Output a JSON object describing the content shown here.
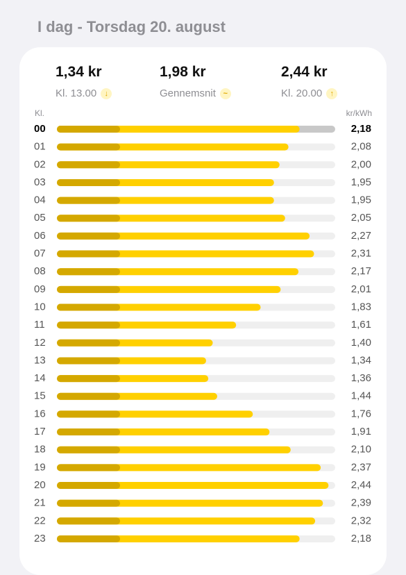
{
  "header": {
    "title": "I dag - Torsdag 20. august"
  },
  "summary": [
    {
      "value": "1,34 kr",
      "label": "Kl. 13.00"
    },
    {
      "value": "1,98 kr",
      "label": "Gennemsnit"
    },
    {
      "value": "2,44 kr",
      "label": "Kl. 20.00"
    }
  ],
  "chart_data": {
    "type": "bar",
    "orientation": "horizontal",
    "category_label": "Kl.",
    "x_label": "kr/kWh",
    "categories": [
      "00",
      "01",
      "02",
      "03",
      "04",
      "05",
      "06",
      "07",
      "08",
      "09",
      "10",
      "11",
      "12",
      "13",
      "14",
      "15",
      "16",
      "17",
      "18",
      "19",
      "20",
      "21",
      "22",
      "23"
    ],
    "values": [
      2.18,
      2.08,
      2.0,
      1.95,
      1.95,
      2.05,
      2.27,
      2.31,
      2.17,
      2.01,
      1.83,
      1.61,
      1.4,
      1.34,
      1.36,
      1.44,
      1.76,
      1.91,
      2.1,
      2.37,
      2.44,
      2.39,
      2.32,
      2.18
    ],
    "value_labels": [
      "2,18",
      "2,08",
      "2,00",
      "1,95",
      "1,95",
      "2,05",
      "2,27",
      "2,31",
      "2,17",
      "2,01",
      "1,83",
      "1,61",
      "1,40",
      "1,34",
      "1,36",
      "1,44",
      "1,76",
      "1,91",
      "2,10",
      "2,37",
      "2,44",
      "2,39",
      "2,32",
      "2,18"
    ],
    "color": "#ffd000",
    "xlim": [
      0,
      2.5
    ],
    "highlight_index": 0
  }
}
